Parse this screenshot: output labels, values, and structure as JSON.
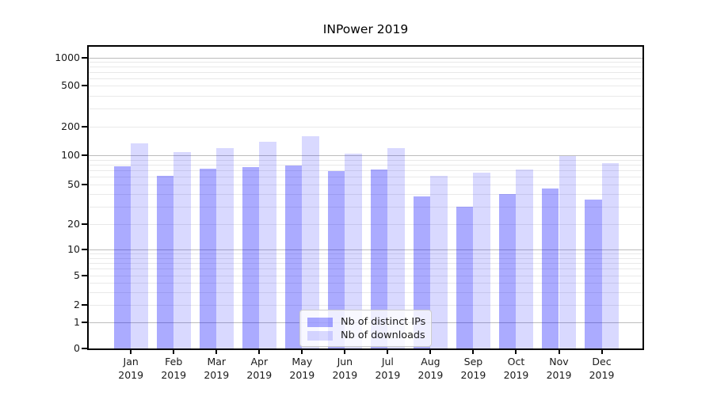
{
  "title": "INPower 2019",
  "chart_data": {
    "type": "bar",
    "title": "INPower 2019",
    "yscale": "symlog",
    "grid": true,
    "ylim": [
      0,
      1300
    ],
    "yticks": [
      0,
      1,
      2,
      5,
      10,
      20,
      50,
      100,
      200,
      500,
      1000
    ],
    "minor_grid_values": [
      2,
      3,
      4,
      5,
      6,
      7,
      8,
      9,
      20,
      30,
      40,
      50,
      60,
      70,
      80,
      90,
      200,
      300,
      400,
      500,
      600,
      700,
      800,
      900
    ],
    "major_grid_values": [
      1,
      10,
      100,
      1000
    ],
    "year": "2019",
    "months": [
      "Jan",
      "Feb",
      "Mar",
      "Apr",
      "May",
      "Jun",
      "Jul",
      "Aug",
      "Sep",
      "Oct",
      "Nov",
      "Dec"
    ],
    "categories": [
      "Jan 2019",
      "Feb 2019",
      "Mar 2019",
      "Apr 2019",
      "May 2019",
      "Jun 2019",
      "Jul 2019",
      "Aug 2019",
      "Sep 2019",
      "Oct 2019",
      "Nov 2019",
      "Dec 2019"
    ],
    "series": [
      {
        "name": "Nb of distinct IPs",
        "color": "rgba(0,0,255,0.33)",
        "values": [
          77,
          61,
          73,
          76,
          78,
          69,
          72,
          38,
          30,
          40,
          46,
          35
        ]
      },
      {
        "name": "Nb of downloads",
        "color": "rgba(0,0,255,0.15)",
        "values": [
          134,
          107,
          118,
          138,
          158,
          103,
          118,
          61,
          66,
          71,
          99,
          83
        ]
      }
    ],
    "legend_location": "lower center"
  },
  "colors": {
    "grid_major": "#bcbcbc",
    "grid_minor": "#e9e9e9",
    "spine": "#000000",
    "text": "#1a1a1a"
  }
}
